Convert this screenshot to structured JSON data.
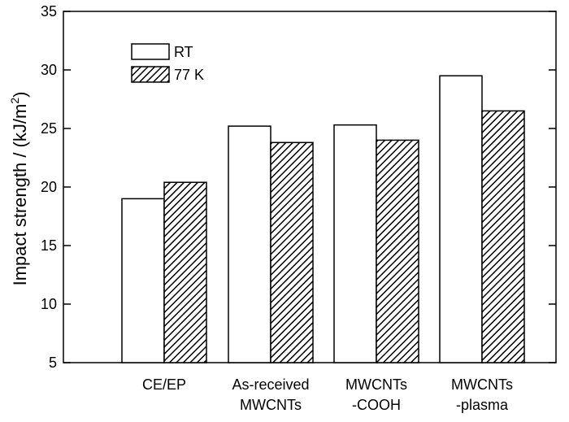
{
  "chart_data": {
    "type": "bar",
    "categories": [
      [
        "CE/EP"
      ],
      [
        "As-received",
        "MWCNTs"
      ],
      [
        "MWCNTs",
        "-COOH"
      ],
      [
        "MWCNTs",
        "-plasma"
      ]
    ],
    "series": [
      {
        "name": "RT",
        "values": [
          19.0,
          25.2,
          25.3,
          29.5
        ],
        "fill": "white"
      },
      {
        "name": "77 K",
        "values": [
          20.4,
          23.8,
          24.0,
          26.5
        ],
        "fill": "hatch"
      }
    ],
    "ylabel_main": "Impact strength / (kJ/m",
    "ylabel_sup": "2",
    "ylabel_tail": ")",
    "ylim": [
      5,
      35
    ],
    "yticks": [
      5,
      10,
      15,
      20,
      25,
      30,
      35
    ],
    "grid": false,
    "legend_position": "top-left",
    "colors": {
      "stroke": "#000000",
      "background": "#ffffff"
    }
  }
}
